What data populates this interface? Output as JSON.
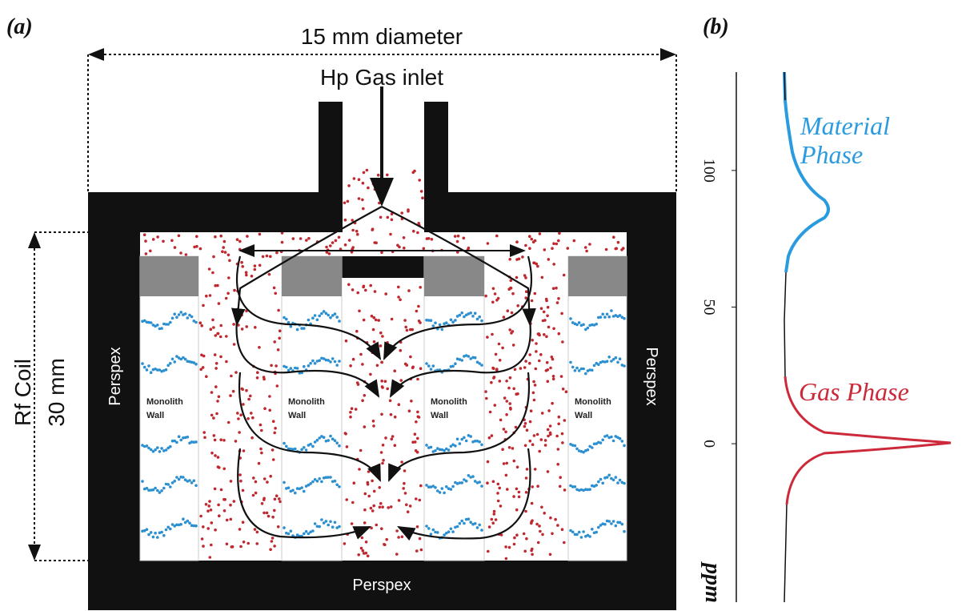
{
  "panel_a": {
    "label": "(a)",
    "dimension_width": "15 mm diameter",
    "inlet": "Hp Gas inlet",
    "coil": [
      "Rf Coil",
      "30 mm"
    ],
    "perspex": [
      "Perspex",
      "Perspex",
      "Perspex"
    ],
    "monolith_wall": [
      [
        "Monolith",
        "Wall"
      ],
      [
        "Monolith",
        "Wall"
      ],
      [
        "Monolith",
        "Wall"
      ],
      [
        "Monolith",
        "Wall"
      ]
    ]
  },
  "panel_b": {
    "label": "(b)",
    "ticks": [
      100,
      50,
      0
    ],
    "ylim": [
      -58,
      136
    ],
    "axis_label": "ppm",
    "material_phase": [
      "Material",
      "Phase"
    ],
    "gas_phase": "Gas Phase"
  }
}
